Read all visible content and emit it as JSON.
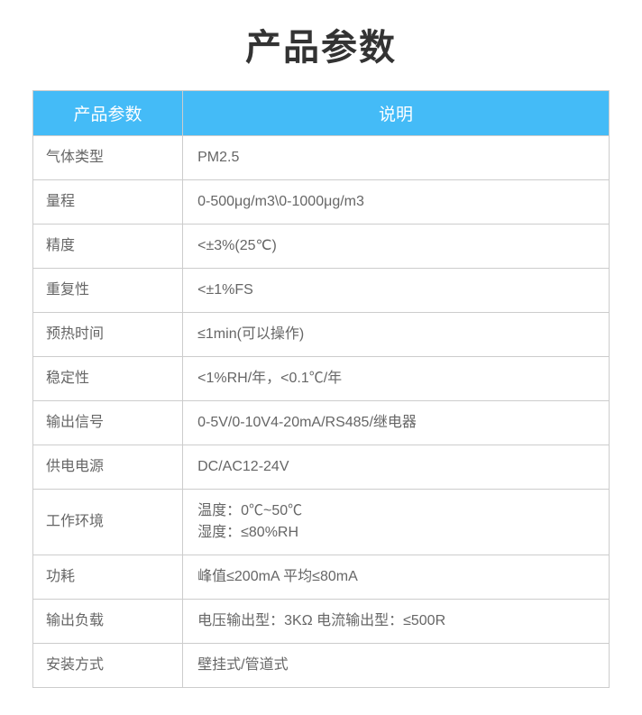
{
  "title": "产品参数",
  "table": {
    "header": {
      "label_col": "产品参数",
      "value_col": "说明"
    },
    "rows": [
      {
        "label": "气体类型",
        "value": "PM2.5"
      },
      {
        "label": "量程",
        "value": "0-500μg/m3\\0-1000μg/m3"
      },
      {
        "label": "精度",
        "value": "<±3%(25℃)"
      },
      {
        "label": "重复性",
        "value": "<±1%FS"
      },
      {
        "label": "预热时间",
        "value": "≤1min(可以操作)"
      },
      {
        "label": "稳定性",
        "value": "<1%RH/年，<0.1℃/年"
      },
      {
        "label": "输出信号",
        "value": "0-5V/0-10V4-20mA/RS485/继电器"
      },
      {
        "label": "供电电源",
        "value": "DC/AC12-24V"
      },
      {
        "label": "工作环境",
        "value_line1": "温度：0℃~50℃",
        "value_line2": "湿度：≤80%RH",
        "multiline": true
      },
      {
        "label": "功耗",
        "value": "峰值≤200mA 平均≤80mA"
      },
      {
        "label": "输出负载",
        "value": "电压输出型：3KΩ 电流输出型：≤500R"
      },
      {
        "label": "安装方式",
        "value": "壁挂式/管道式"
      }
    ]
  },
  "colors": {
    "header_bg": "#44bbf7",
    "header_text": "#ffffff",
    "border": "#cccccc",
    "title_text": "#333333",
    "cell_text": "#666666",
    "page_bg": "#ffffff"
  }
}
